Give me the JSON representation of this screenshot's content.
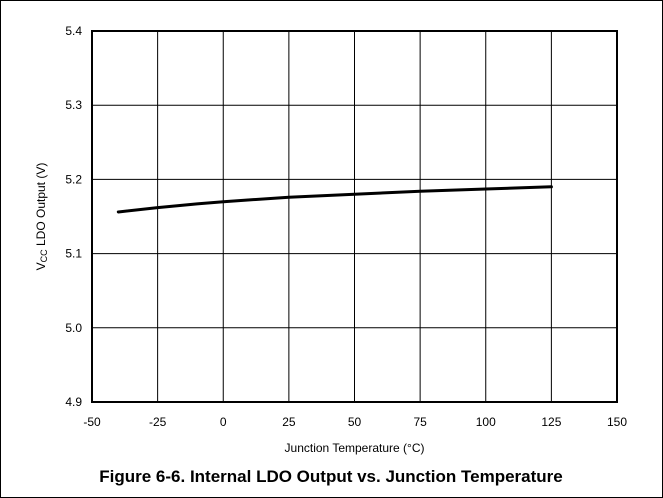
{
  "chart_data": {
    "type": "line",
    "title": "",
    "caption": "Figure 6-6. Internal LDO Output vs. Junction Temperature",
    "xlabel": "Junction Temperature (°C)",
    "ylabel": {
      "prefix": "V",
      "subscript": "CC",
      "suffix": " LDO Output (V)"
    },
    "xlim": [
      -50,
      150
    ],
    "ylim": [
      4.9,
      5.4
    ],
    "x_ticks": [
      -50,
      -25,
      0,
      25,
      50,
      75,
      100,
      125,
      150
    ],
    "y_ticks": [
      4.9,
      5.0,
      5.1,
      5.2,
      5.3,
      5.4
    ],
    "x_tick_labels": [
      "-50",
      "-25",
      "0",
      "25",
      "50",
      "75",
      "100",
      "125",
      "150"
    ],
    "y_tick_labels": [
      "4.9",
      "5.0",
      "5.1",
      "5.2",
      "5.3",
      "5.4"
    ],
    "grid": true,
    "legend": "none",
    "series": [
      {
        "color": "#000000",
        "x": [
          -40,
          -25,
          -10,
          0,
          25,
          50,
          75,
          100,
          125
        ],
        "y": [
          5.156,
          5.162,
          5.167,
          5.17,
          5.176,
          5.18,
          5.184,
          5.187,
          5.19
        ]
      }
    ]
  }
}
